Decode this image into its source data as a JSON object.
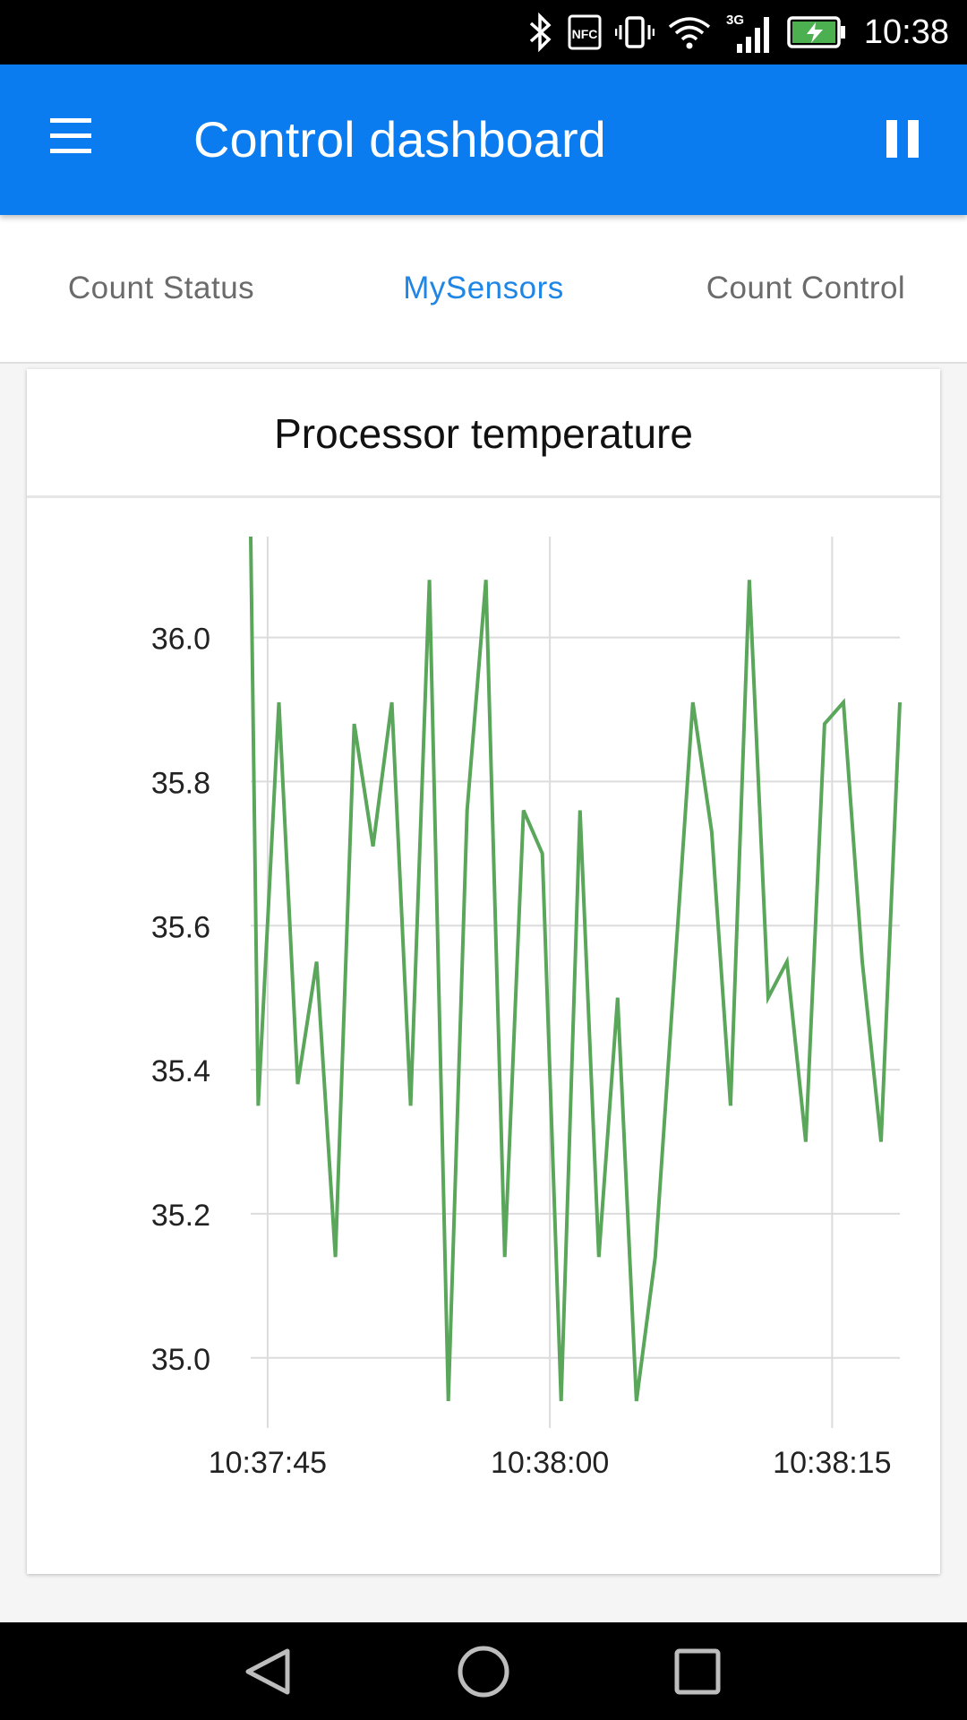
{
  "status_bar": {
    "time": "10:38",
    "icons": [
      "bluetooth-icon",
      "nfc-icon",
      "vibrate-icon",
      "wifi-icon",
      "signal-3g-icon",
      "battery-charging-icon"
    ],
    "network_label": "3G",
    "nfc_label": "NFC"
  },
  "app_bar": {
    "title": "Control dashboard",
    "menu_icon": "hamburger-menu-icon",
    "pause_icon": "pause-icon"
  },
  "tabs": [
    {
      "label": "Count Status",
      "active": false
    },
    {
      "label": "MySensors",
      "active": true
    },
    {
      "label": "Count Control",
      "active": false
    }
  ],
  "colors": {
    "app_bar": "#0a7cf0",
    "active_tab": "#1f86e6",
    "series": "#5aa65a"
  },
  "card": {
    "title": "Processor temperature"
  },
  "chart_data": {
    "type": "line",
    "title": "Processor temperature",
    "xlabel": "",
    "ylabel": "",
    "ylim": [
      34.94,
      36.14
    ],
    "y_ticks": [
      "35.0",
      "35.2",
      "35.4",
      "35.6",
      "35.8",
      "36.0"
    ],
    "x_ticks": [
      "10:37:45",
      "10:38:00",
      "10:38:15"
    ],
    "x_tick_values": [
      "10:37:45",
      "10:38:00",
      "10:38:15"
    ],
    "grid": true,
    "series": [
      {
        "color": "#5aa65a",
        "x": [
          "10:37:44.1",
          "10:37:44.5",
          "10:37:45.6",
          "10:37:46.6",
          "10:37:47.6",
          "10:37:48.6",
          "10:37:49.6",
          "10:37:50.6",
          "10:37:51.6",
          "10:37:52.6",
          "10:37:53.6",
          "10:37:54.6",
          "10:37:55.6",
          "10:37:56.6",
          "10:37:57.6",
          "10:37:58.6",
          "10:37:59.6",
          "10:38:00.6",
          "10:38:01.6",
          "10:38:02.6",
          "10:38:03.6",
          "10:38:04.6",
          "10:38:05.6",
          "10:38:07.6",
          "10:38:08.6",
          "10:38:09.6",
          "10:38:10.6",
          "10:38:11.6",
          "10:38:12.6",
          "10:38:13.6",
          "10:38:14.6",
          "10:38:15.6",
          "10:38:16.6",
          "10:38:17.6",
          "10:38:18.6"
        ],
        "y": [
          36.14,
          35.35,
          35.91,
          35.38,
          35.55,
          35.14,
          35.88,
          35.71,
          35.91,
          35.35,
          36.08,
          34.94,
          35.76,
          36.08,
          35.14,
          35.76,
          35.7,
          34.94,
          35.76,
          35.14,
          35.5,
          34.94,
          35.14,
          35.91,
          35.73,
          35.35,
          36.08,
          35.5,
          35.55,
          35.3,
          35.88,
          35.91,
          35.55,
          35.3,
          35.91
        ]
      }
    ]
  }
}
